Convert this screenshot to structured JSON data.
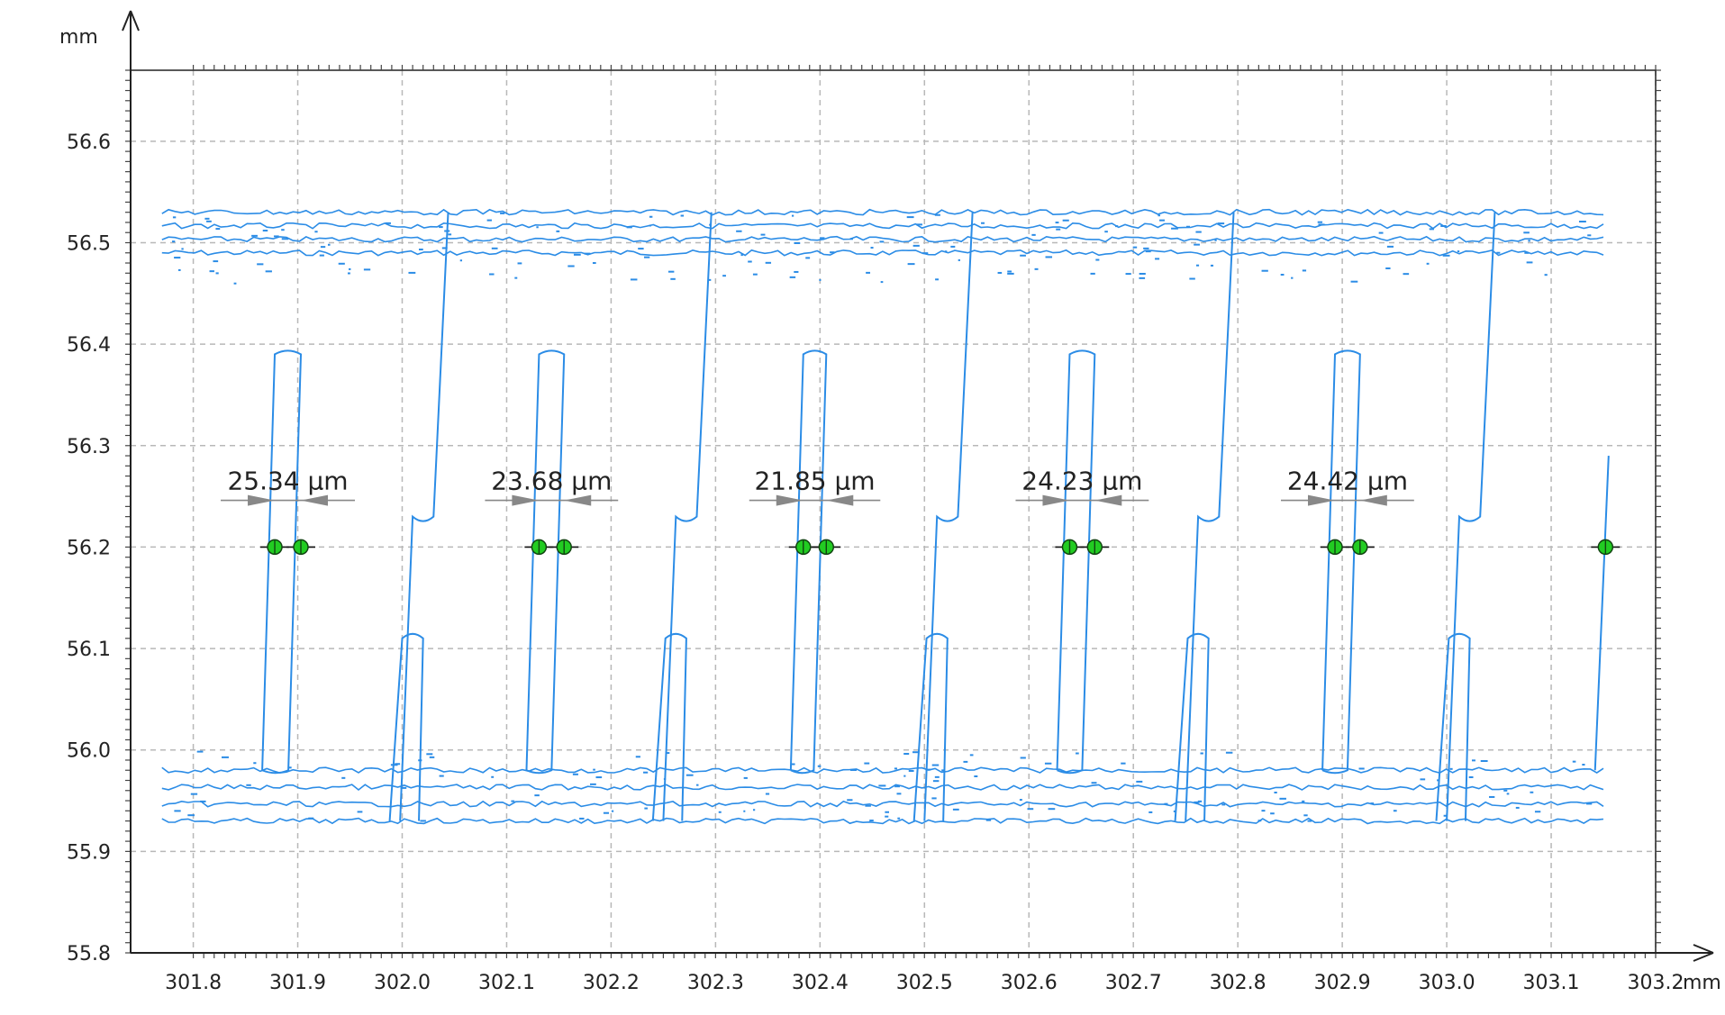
{
  "chart_data": {
    "type": "line",
    "title": "",
    "xlabel": "mm",
    "ylabel": "mm",
    "xlim": [
      301.74,
      303.2
    ],
    "ylim": [
      55.8,
      56.67
    ],
    "grid": true,
    "x_ticks": [
      "301.8",
      "301.9",
      "302.0",
      "302.1",
      "302.2",
      "302.3",
      "302.4",
      "302.5",
      "302.6",
      "302.7",
      "302.8",
      "302.9",
      "303.0",
      "303.1",
      "303.2"
    ],
    "y_ticks": [
      "55.8",
      "55.9",
      "56.0",
      "56.1",
      "56.2",
      "56.3",
      "56.4",
      "56.5",
      "56.6"
    ],
    "series_color": "#2b8ce6",
    "marker_color": "#22cc22",
    "measure_line_y": 56.2,
    "measurements": [
      {
        "label": "25.34 µm",
        "x1": 301.878,
        "x2": 301.903
      },
      {
        "label": "23.68 µm",
        "x1": 302.131,
        "x2": 302.155
      },
      {
        "label": "21.85 µm",
        "x1": 302.384,
        "x2": 302.406
      },
      {
        "label": "24.23 µm",
        "x1": 302.639,
        "x2": 302.663
      },
      {
        "label": "24.42 µm",
        "x1": 302.893,
        "x2": 302.917
      }
    ],
    "extra_marker_x": 303.152,
    "contour": {
      "top_band": [
        56.49,
        56.53
      ],
      "bottom_band": [
        55.93,
        55.98
      ],
      "teeth_down": [
        {
          "x1": 301.878,
          "x2": 301.903,
          "top": 56.39,
          "bottom": 55.98
        },
        {
          "x1": 302.131,
          "x2": 302.155,
          "top": 56.39,
          "bottom": 55.98
        },
        {
          "x1": 302.384,
          "x2": 302.406,
          "top": 56.39,
          "bottom": 55.98
        },
        {
          "x1": 302.639,
          "x2": 302.663,
          "top": 56.39,
          "bottom": 55.98
        },
        {
          "x1": 302.893,
          "x2": 302.917,
          "top": 56.39,
          "bottom": 55.98
        }
      ],
      "fingers_up": [
        {
          "x1": 302.01,
          "x2": 302.03,
          "top": 56.23,
          "bottom": 55.93
        },
        {
          "x1": 302.262,
          "x2": 302.282,
          "top": 56.23,
          "bottom": 55.93
        },
        {
          "x1": 302.512,
          "x2": 302.532,
          "top": 56.23,
          "bottom": 55.93
        },
        {
          "x1": 302.762,
          "x2": 302.782,
          "top": 56.23,
          "bottom": 55.93
        },
        {
          "x1": 303.012,
          "x2": 303.032,
          "top": 56.23,
          "bottom": 55.93
        }
      ],
      "fingers_down": [
        {
          "x1": 302.0,
          "x2": 302.02,
          "top": 56.53,
          "bottom": 56.11
        },
        {
          "x1": 302.252,
          "x2": 302.272,
          "top": 56.53,
          "bottom": 56.11
        },
        {
          "x1": 302.502,
          "x2": 302.522,
          "top": 56.53,
          "bottom": 56.11
        },
        {
          "x1": 302.752,
          "x2": 302.772,
          "top": 56.53,
          "bottom": 56.11
        },
        {
          "x1": 303.002,
          "x2": 303.022,
          "top": 56.53,
          "bottom": 56.11
        }
      ]
    }
  }
}
